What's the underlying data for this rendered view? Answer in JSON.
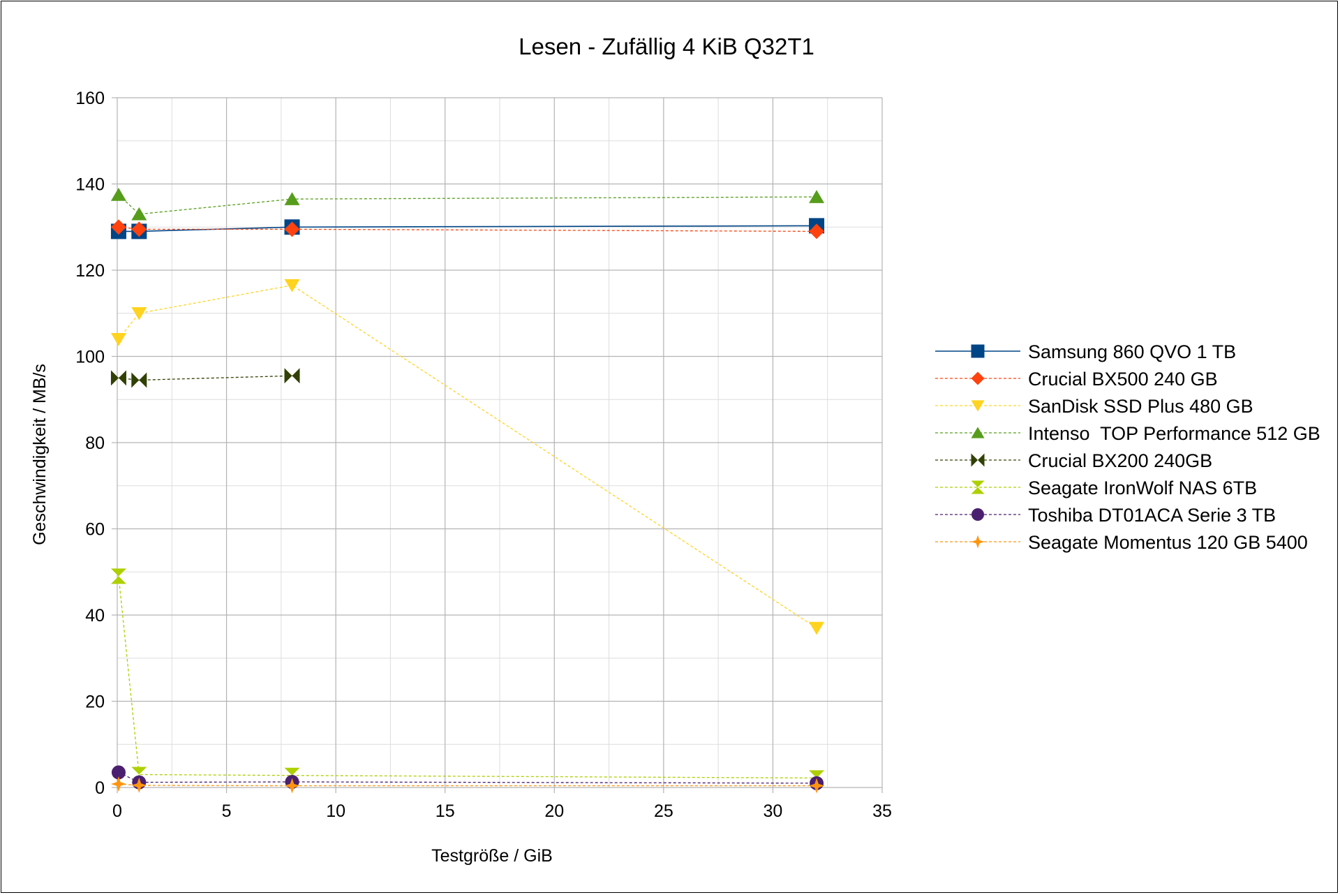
{
  "chart_data": {
    "type": "line",
    "title": "Lesen - Zufällig 4 KiB Q32T1",
    "xlabel": "Testgröße / GiB",
    "ylabel": "Geschwindigkeit / MB/s",
    "xlim": [
      0,
      35
    ],
    "ylim": [
      0,
      160
    ],
    "x_ticks": [
      0,
      5,
      10,
      15,
      20,
      25,
      30,
      35
    ],
    "y_ticks": [
      0,
      20,
      40,
      60,
      80,
      100,
      120,
      140,
      160
    ],
    "grid": true,
    "legend_position": "right",
    "series": [
      {
        "name": "Samsung 860 QVO 1 TB",
        "color": "#004586",
        "marker": "square",
        "dash": "solid",
        "x": [
          0.0625,
          1,
          8,
          32
        ],
        "y": [
          129,
          129,
          130,
          130.3
        ]
      },
      {
        "name": "Crucial BX500 240 GB",
        "color": "#ff420e",
        "marker": "diamond",
        "dash": "dashed",
        "x": [
          0.0625,
          1,
          8,
          32
        ],
        "y": [
          130,
          129.5,
          129.5,
          129
        ]
      },
      {
        "name": "SanDisk SSD Plus 480 GB",
        "color": "#ffd320",
        "marker": "triangle-down",
        "dash": "dashed",
        "x": [
          0.0625,
          1,
          8,
          32
        ],
        "y": [
          104,
          110,
          116.5,
          37
        ]
      },
      {
        "name": "Intenso  TOP Performance 512 GB",
        "color": "#579d1c",
        "marker": "triangle-up",
        "dash": "dashed",
        "x": [
          0.0625,
          1,
          8,
          32
        ],
        "y": [
          137.5,
          133,
          136.5,
          137
        ]
      },
      {
        "name": "Crucial BX200 240GB",
        "color": "#314004",
        "marker": "bowtie",
        "dash": "dashed",
        "x": [
          0.0625,
          1,
          8
        ],
        "y": [
          95,
          94.5,
          95.5
        ]
      },
      {
        "name": "Seagate IronWolf NAS 6TB",
        "color": "#aecf00",
        "marker": "hourglass",
        "dash": "dashed",
        "x": [
          0.0625,
          1,
          8,
          32
        ],
        "y": [
          49,
          3,
          2.8,
          2.2
        ]
      },
      {
        "name": "Toshiba DT01ACA Serie 3 TB",
        "color": "#4b1f6f",
        "marker": "circle",
        "dash": "dashed",
        "x": [
          0.0625,
          1,
          8,
          32
        ],
        "y": [
          3.5,
          1.2,
          1.3,
          1
        ]
      },
      {
        "name": "Seagate Momentus 120 GB 5400",
        "color": "#ff950e",
        "marker": "star",
        "dash": "dashed",
        "x": [
          0.0625,
          1,
          8,
          32
        ],
        "y": [
          0.8,
          0.5,
          0.4,
          0.4
        ]
      }
    ]
  }
}
